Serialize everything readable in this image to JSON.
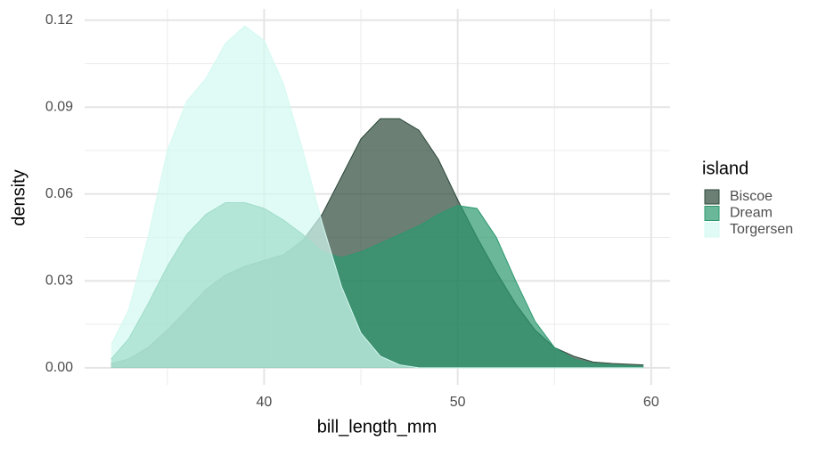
{
  "chart_data": {
    "type": "area",
    "x_label": "bill_length_mm",
    "y_label": "density",
    "legend_title": "island",
    "legend_position": "right",
    "x": [
      32.1,
      33,
      34,
      35,
      36,
      37,
      38,
      39,
      40,
      41,
      42,
      43,
      44,
      45,
      46,
      47,
      48,
      49,
      50,
      51,
      52,
      53,
      54,
      55,
      56,
      57,
      58,
      59.6
    ],
    "series": [
      {
        "name": "Biscoe",
        "color": "#2c483a",
        "values": [
          0.0015,
          0.003,
          0.007,
          0.013,
          0.02,
          0.027,
          0.032,
          0.035,
          0.037,
          0.039,
          0.044,
          0.053,
          0.066,
          0.079,
          0.086,
          0.086,
          0.082,
          0.072,
          0.058,
          0.045,
          0.033,
          0.022,
          0.013,
          0.007,
          0.004,
          0.002,
          0.0015,
          0.001
        ]
      },
      {
        "name": "Dream",
        "color": "#2b986f",
        "values": [
          0.003,
          0.01,
          0.022,
          0.035,
          0.046,
          0.053,
          0.057,
          0.057,
          0.055,
          0.051,
          0.046,
          0.04,
          0.038,
          0.04,
          0.043,
          0.046,
          0.049,
          0.053,
          0.056,
          0.055,
          0.045,
          0.03,
          0.016,
          0.007,
          0.003,
          0.0015,
          0.001,
          0.0005
        ]
      },
      {
        "name": "Torgersen",
        "color": "#d3f9f1",
        "values": [
          0.008,
          0.02,
          0.045,
          0.075,
          0.092,
          0.1,
          0.112,
          0.118,
          0.113,
          0.098,
          0.075,
          0.05,
          0.028,
          0.012,
          0.004,
          0.001,
          0,
          0,
          0,
          0,
          0,
          0,
          0,
          0,
          0,
          0,
          0,
          0
        ]
      }
    ],
    "xlim": [
      30.725,
      60.975
    ],
    "ylim": [
      -0.0059,
      0.1239
    ],
    "xticks": [
      40,
      50,
      60
    ],
    "yticks": [
      {
        "value": 0,
        "label": "0.00"
      },
      {
        "value": 0.03,
        "label": "0.03"
      },
      {
        "value": 0.06,
        "label": "0.06"
      },
      {
        "value": 0.09,
        "label": "0.09"
      },
      {
        "value": 0.12,
        "label": "0.12"
      }
    ],
    "x_minor_ticks": [
      35,
      45,
      55
    ],
    "y_minor_ticks": [
      0.015,
      0.045,
      0.075,
      0.105
    ],
    "grid": true,
    "fill_opacity": 0.7
  }
}
